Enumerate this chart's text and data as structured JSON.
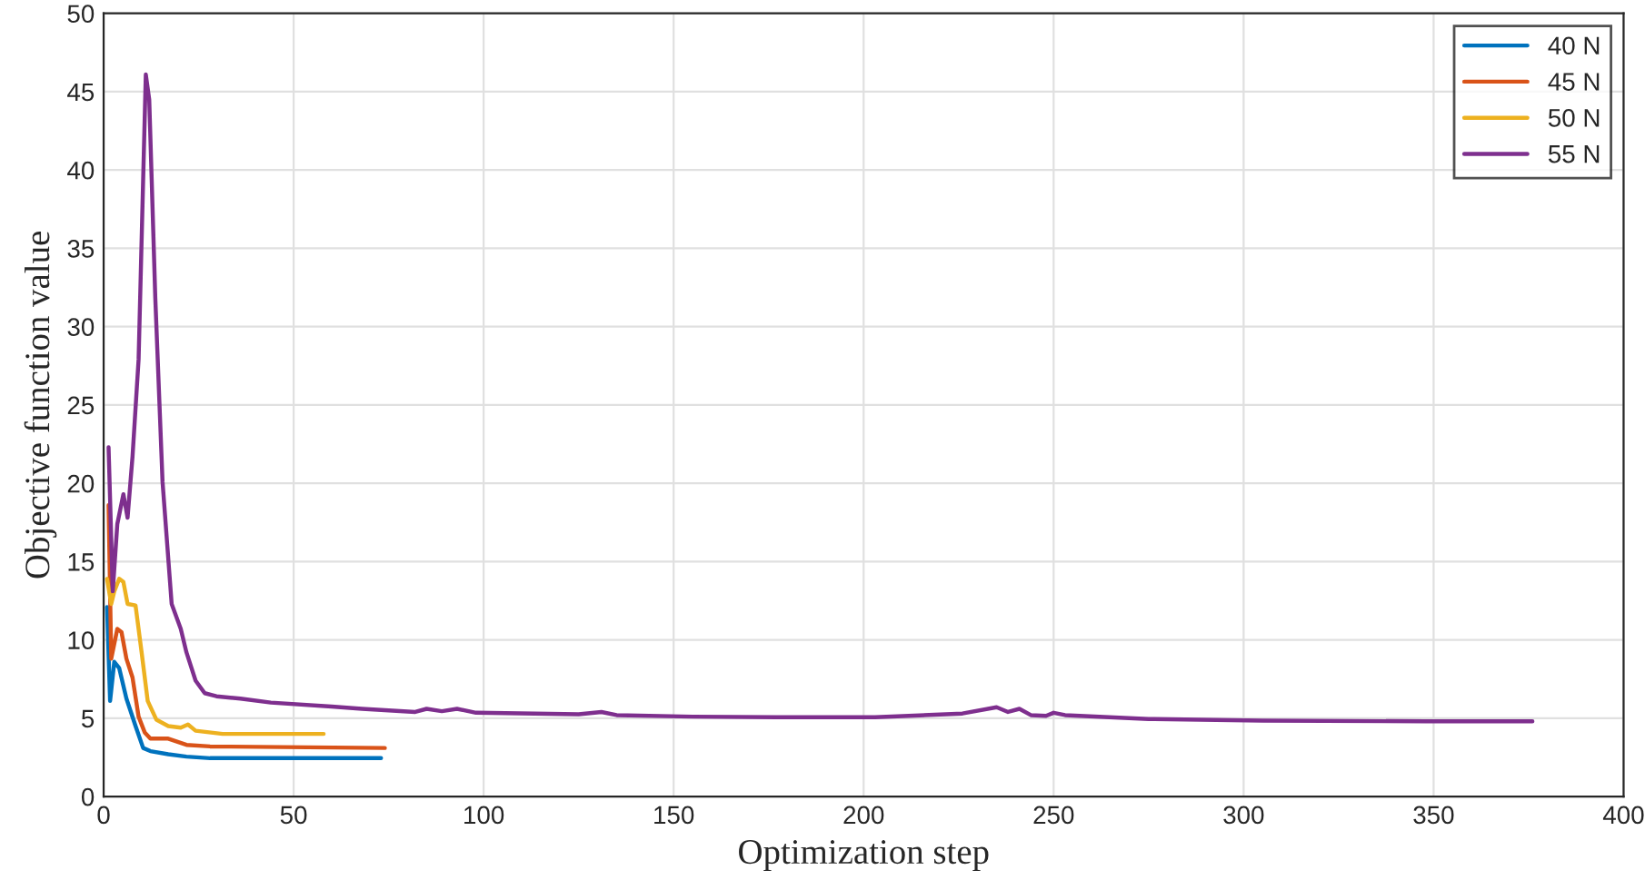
{
  "chart_data": {
    "type": "line",
    "xlabel": "Optimization step",
    "ylabel": "Objective function value",
    "xlim": [
      0,
      400
    ],
    "xticks": [
      0,
      50,
      100,
      150,
      200,
      250,
      300,
      350,
      400
    ],
    "ylim": [
      0,
      50
    ],
    "yticks": [
      0,
      5,
      10,
      15,
      20,
      25,
      30,
      35,
      40,
      45,
      50
    ],
    "grid": true,
    "legend": "top right",
    "marker": "none",
    "line_style": "solid",
    "series": [
      {
        "name": "40 N",
        "color": "#0072bd",
        "x": [
          0.9,
          1.7,
          2.8,
          4.1,
          6,
          8.4,
          10.4,
          12.3,
          17,
          21.8,
          28,
          73
        ],
        "values": [
          12.1,
          6.1,
          8.6,
          8.2,
          6.25,
          4.5,
          3.1,
          2.9,
          2.7,
          2.55,
          2.45,
          2.45
        ]
      },
      {
        "name": "45 N",
        "color": "#d95319",
        "x": [
          1.3,
          2,
          3.6,
          4.7,
          6,
          7.6,
          9.2,
          10.8,
          12.3,
          17,
          21.8,
          28,
          74
        ],
        "values": [
          18.6,
          8.8,
          10.7,
          10.5,
          8.8,
          7.6,
          5.1,
          4.1,
          3.7,
          3.7,
          3.3,
          3.2,
          3.1
        ]
      },
      {
        "name": "50 N",
        "color": "#edb120",
        "x": [
          0.9,
          2,
          2.8,
          4.1,
          5.2,
          6.3,
          8.4,
          10,
          11.6,
          13.9,
          17,
          20.3,
          22.2,
          24.2,
          31.3,
          57.9
        ],
        "values": [
          13.9,
          12.3,
          13.1,
          13.9,
          13.7,
          12.3,
          12.2,
          9.2,
          6.1,
          4.9,
          4.5,
          4.4,
          4.6,
          4.2,
          4.0,
          4.0
        ]
      },
      {
        "name": "55 N",
        "color": "#7e2f8e",
        "x": [
          1.3,
          2.4,
          3.6,
          5.2,
          6.3,
          7.6,
          9.2,
          11.1,
          12,
          13.6,
          15.5,
          17.9,
          20.3,
          21.8,
          24.2,
          26.6,
          29.7,
          36,
          44,
          60,
          68,
          82,
          85,
          89,
          93,
          98,
          125,
          131,
          135,
          155,
          177,
          203,
          226,
          235,
          238,
          241,
          244,
          248,
          250,
          253,
          275,
          305,
          348,
          376
        ],
        "values": [
          22.3,
          13.1,
          17.4,
          19.3,
          17.8,
          21.7,
          27.9,
          46.1,
          44.5,
          31.8,
          20.1,
          12.3,
          10.7,
          9.2,
          7.4,
          6.6,
          6.4,
          6.25,
          6.0,
          5.75,
          5.6,
          5.4,
          5.6,
          5.45,
          5.6,
          5.35,
          5.25,
          5.4,
          5.2,
          5.1,
          5.06,
          5.06,
          5.3,
          5.7,
          5.4,
          5.6,
          5.2,
          5.15,
          5.35,
          5.2,
          4.95,
          4.85,
          4.8,
          4.8
        ]
      }
    ]
  }
}
